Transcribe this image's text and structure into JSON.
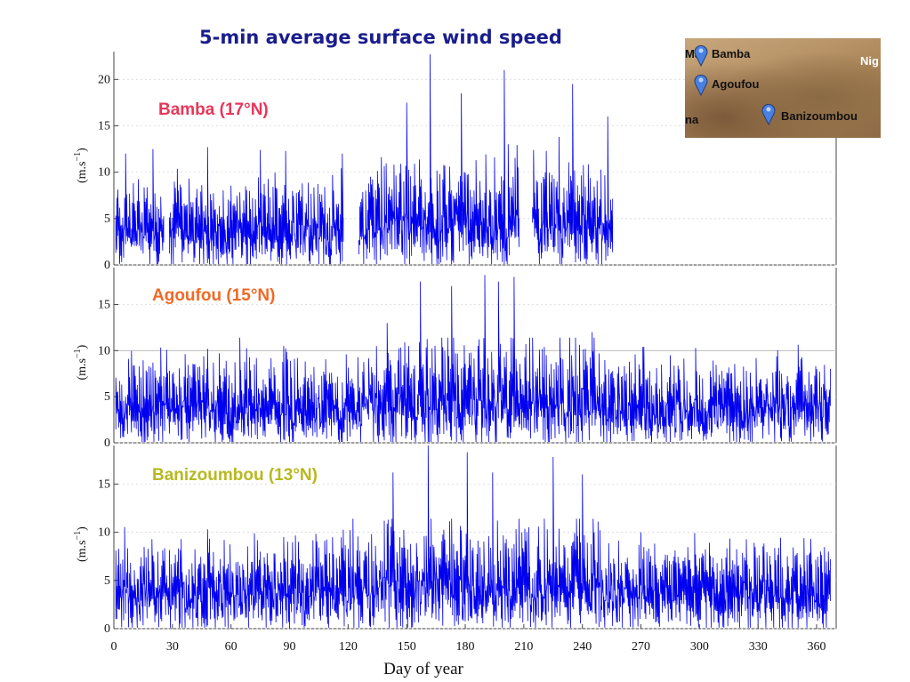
{
  "title": "5-min average surface wind speed",
  "map": {
    "stations": [
      {
        "name": "Bamba"
      },
      {
        "name": "Agoufou"
      },
      {
        "name": "Banizoumbou"
      }
    ],
    "partial_labels": [
      "Ma",
      "Nig",
      "na"
    ],
    "pin_color": "#4a80e0"
  },
  "chart_data": [
    {
      "type": "line",
      "label": "Bamba (17°N)",
      "label_color": "#e8365a",
      "ylabel": "(m.s",
      "ylabel_exp": "−1",
      "ylabel_close": ")",
      "yticks": [
        "0",
        "5",
        "10",
        "15",
        "20"
      ],
      "ylim": [
        0,
        23
      ],
      "xlim": [
        0,
        370
      ],
      "series_color": "#0000ee",
      "gaps": [
        [
          26,
          28
        ],
        [
          118,
          125
        ],
        [
          208,
          214
        ],
        [
          256,
          370
        ]
      ],
      "peaks": [
        [
          6,
          12.0
        ],
        [
          20,
          12.5
        ],
        [
          48,
          12.7
        ],
        [
          88,
          12.3
        ],
        [
          117,
          12.0
        ],
        [
          150,
          17.5
        ],
        [
          162,
          22.7
        ],
        [
          178,
          18.5
        ],
        [
          200,
          21.0
        ],
        [
          235,
          19.5
        ],
        [
          253,
          16.0
        ]
      ]
    },
    {
      "type": "line",
      "label": "Agoufou (15°N)",
      "label_color": "#f06a26",
      "ylabel": "(m.s",
      "ylabel_exp": "−1",
      "ylabel_close": ")",
      "yticks": [
        "0",
        "5",
        "10",
        "15"
      ],
      "ylim": [
        0,
        19
      ],
      "xlim": [
        0,
        370
      ],
      "series_color": "#0000ee",
      "gaps": [],
      "peaks": [
        [
          48,
          10.2
        ],
        [
          87,
          10.5
        ],
        [
          140,
          13.0
        ],
        [
          157,
          17.5
        ],
        [
          173,
          17.0
        ],
        [
          190,
          18.2
        ],
        [
          197,
          17.5
        ],
        [
          205,
          18.0
        ],
        [
          245,
          12.0
        ],
        [
          285,
          9.5
        ],
        [
          360,
          8.0
        ]
      ]
    },
    {
      "type": "line",
      "label": "Banizoumbou (13°N)",
      "label_color": "#b8b820",
      "ylabel": "(m.s",
      "ylabel_exp": "−1",
      "ylabel_close": ")",
      "yticks": [
        "0",
        "5",
        "10",
        "15"
      ],
      "ylim": [
        0,
        19
      ],
      "xlim": [
        0,
        370
      ],
      "xticks": [
        "0",
        "30",
        "60",
        "90",
        "120",
        "150",
        "180",
        "210",
        "240",
        "270",
        "300",
        "330",
        "360"
      ],
      "xlabel": "Day of year",
      "series_color": "#0000ee",
      "gaps": [],
      "peaks": [
        [
          48,
          10.3
        ],
        [
          87,
          9.5
        ],
        [
          143,
          16.2
        ],
        [
          161,
          19.0
        ],
        [
          181,
          18.3
        ],
        [
          194,
          16.2
        ],
        [
          225,
          17.8
        ],
        [
          240,
          16.0
        ],
        [
          270,
          10.0
        ],
        [
          362,
          8.0
        ]
      ]
    }
  ]
}
